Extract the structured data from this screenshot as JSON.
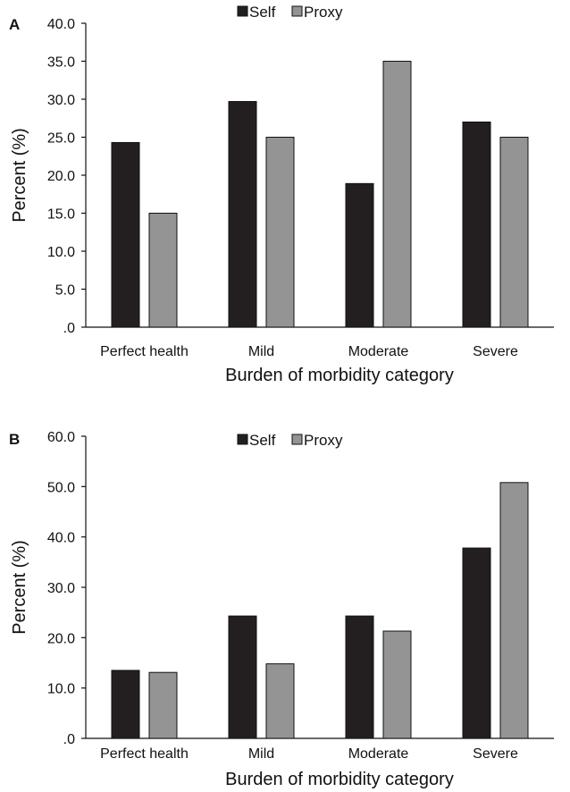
{
  "colors": {
    "self": "#231f20",
    "proxy": "#949494",
    "axis": "#111111"
  },
  "chart_data": [
    {
      "type": "bar",
      "panel_label": "A",
      "categories": [
        "Perfect health",
        "Mild",
        "Moderate",
        "Severe"
      ],
      "series": [
        {
          "name": "Self",
          "values": [
            24.3,
            29.7,
            18.9,
            27.0
          ]
        },
        {
          "name": "Proxy",
          "values": [
            15.0,
            25.0,
            35.0,
            25.0
          ]
        }
      ],
      "xlabel": "Burden of morbidity category",
      "ylabel": "Percent (%)",
      "ylim": [
        0,
        40
      ],
      "yticks": [
        ".0",
        "5.0",
        "10.0",
        "15.0",
        "20.0",
        "25.0",
        "30.0",
        "35.0",
        "40.0"
      ],
      "legend": "top-center",
      "grid": false
    },
    {
      "type": "bar",
      "panel_label": "B",
      "categories": [
        "Perfect health",
        "Mild",
        "Moderate",
        "Severe"
      ],
      "series": [
        {
          "name": "Self",
          "values": [
            13.5,
            24.3,
            24.3,
            37.8
          ]
        },
        {
          "name": "Proxy",
          "values": [
            13.1,
            14.8,
            21.3,
            50.8
          ]
        }
      ],
      "xlabel": "Burden of morbidity category",
      "ylabel": "Percent (%)",
      "ylim": [
        0,
        60
      ],
      "yticks": [
        ".0",
        "10.0",
        "20.0",
        "30.0",
        "40.0",
        "50.0",
        "60.0"
      ],
      "legend": "top-center",
      "grid": false
    }
  ]
}
